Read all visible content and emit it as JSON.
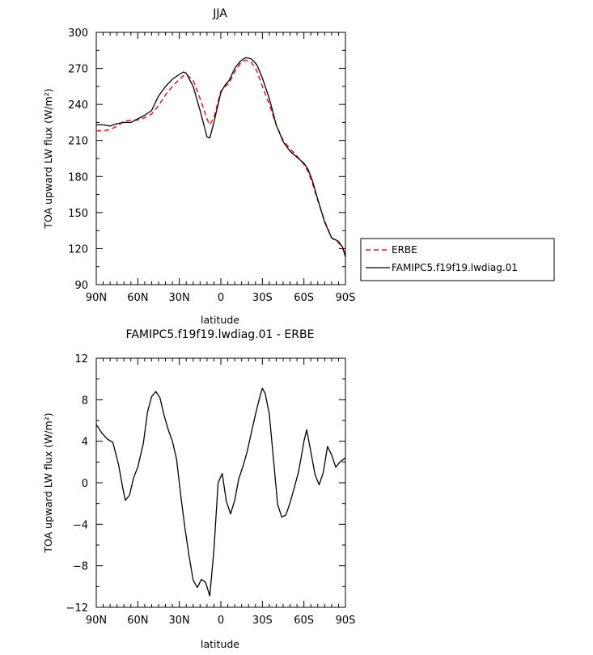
{
  "chart_data": [
    {
      "type": "line",
      "title": "JJA",
      "xlabel": "latitude",
      "ylabel": "TOA upward LW flux (W/m²)",
      "xlim": [
        90,
        -90
      ],
      "ylim": [
        90,
        300
      ],
      "xticks": [
        90,
        60,
        30,
        0,
        -30,
        -60,
        -90
      ],
      "xtick_labels": [
        "90N",
        "60N",
        "30N",
        "0",
        "30S",
        "60S",
        "90S"
      ],
      "yticks": [
        90,
        120,
        150,
        180,
        210,
        240,
        270,
        300
      ],
      "ytick_labels": [
        "90",
        "120",
        "150",
        "180",
        "210",
        "240",
        "270",
        "300"
      ],
      "legend": {
        "placement": "right-outside",
        "entries": [
          "ERBE",
          "FAMIPC5.f19f19.lwdiag.01"
        ]
      },
      "series": [
        {
          "name": "ERBE",
          "color": "#e8141c",
          "dash": true,
          "x": [
            90,
            85,
            80,
            75,
            70,
            65,
            60,
            55,
            50,
            45,
            40,
            35,
            30,
            27,
            25,
            20,
            15,
            10,
            8,
            5,
            0,
            -3,
            -6,
            -10,
            -14,
            -18,
            -22,
            -26,
            -30,
            -35,
            -40,
            -45,
            -50,
            -55,
            -60,
            -63,
            -66,
            -70,
            -75,
            -80,
            -85,
            -88,
            -90
          ],
          "y": [
            218,
            218,
            219,
            222,
            226,
            227,
            227,
            229,
            232,
            239,
            248,
            255,
            261,
            264,
            265,
            260,
            245,
            228,
            223,
            229,
            251,
            255,
            258,
            267,
            274,
            277,
            275,
            268,
            255,
            240,
            223,
            210,
            203,
            197,
            190,
            184,
            175,
            160,
            143,
            129,
            125,
            120,
            116
          ]
        },
        {
          "name": "FAMIPC5.f19f19.lwdiag.01",
          "color": "#000000",
          "dash": false,
          "x": [
            90,
            85,
            80,
            75,
            70,
            65,
            60,
            55,
            50,
            45,
            40,
            35,
            30,
            27,
            25,
            20,
            15,
            10,
            8,
            5,
            0,
            -3,
            -6,
            -10,
            -14,
            -18,
            -22,
            -26,
            -30,
            -35,
            -40,
            -45,
            -50,
            -55,
            -60,
            -63,
            -66,
            -70,
            -75,
            -80,
            -85,
            -88,
            -90
          ],
          "y": [
            223,
            223,
            222,
            224,
            225,
            225,
            228,
            231,
            235,
            247,
            255,
            261,
            265,
            267,
            266,
            255,
            235,
            213,
            212,
            225,
            250,
            256,
            260,
            270,
            276,
            279,
            278,
            273,
            262,
            245,
            223,
            209,
            201,
            196,
            191,
            186,
            177,
            161,
            142,
            129,
            126,
            121,
            113
          ]
        }
      ]
    },
    {
      "type": "line",
      "title": "FAMIPC5.f19f19.lwdiag.01 - ERBE",
      "xlabel": "latitude",
      "ylabel": "TOA upward LW flux (W/m²)",
      "xlim": [
        90,
        -90
      ],
      "ylim": [
        -12,
        12
      ],
      "xticks": [
        90,
        60,
        30,
        0,
        -30,
        -60,
        -90
      ],
      "xtick_labels": [
        "90N",
        "60N",
        "30N",
        "0",
        "30S",
        "60S",
        "90S"
      ],
      "yticks": [
        -12,
        -8,
        -4,
        0,
        4,
        8,
        12
      ],
      "ytick_labels": [
        "−12",
        "−8",
        "−4",
        "0",
        "4",
        "8",
        "12"
      ],
      "series": [
        {
          "color": "#000000",
          "dash": false,
          "x": [
            90,
            86,
            82,
            78,
            74,
            71,
            69,
            66,
            63,
            60,
            56,
            53,
            50,
            47,
            44,
            41,
            38,
            35,
            32,
            29,
            26,
            23,
            20,
            17,
            14,
            11,
            8,
            5,
            2,
            -1,
            -4,
            -7,
            -10,
            -13,
            -16,
            -19,
            -22,
            -25,
            -28,
            -30,
            -32,
            -35,
            -38,
            -41,
            -44,
            -47,
            -50,
            -53,
            -56,
            -58,
            -60,
            -62,
            -65,
            -68,
            -71,
            -74,
            -77,
            -80,
            -83,
            -86,
            -90
          ],
          "y": [
            5.6,
            4.8,
            4.2,
            3.9,
            1.8,
            -0.4,
            -1.7,
            -1.2,
            0.5,
            1.5,
            3.8,
            6.8,
            8.3,
            8.8,
            8.2,
            6.5,
            5.1,
            4.0,
            2.3,
            -1.2,
            -4.3,
            -7.0,
            -9.4,
            -10.1,
            -9.3,
            -9.6,
            -10.9,
            -6.5,
            0.0,
            0.9,
            -1.8,
            -3.0,
            -1.7,
            0.4,
            1.6,
            3.0,
            4.8,
            6.6,
            8.2,
            9.1,
            8.6,
            6.6,
            2.3,
            -2.1,
            -3.3,
            -3.1,
            -1.9,
            -0.5,
            1.0,
            2.4,
            4.0,
            5.1,
            3.0,
            0.8,
            -0.2,
            1.0,
            3.5,
            2.7,
            1.5,
            2.0,
            2.4
          ]
        }
      ]
    }
  ]
}
